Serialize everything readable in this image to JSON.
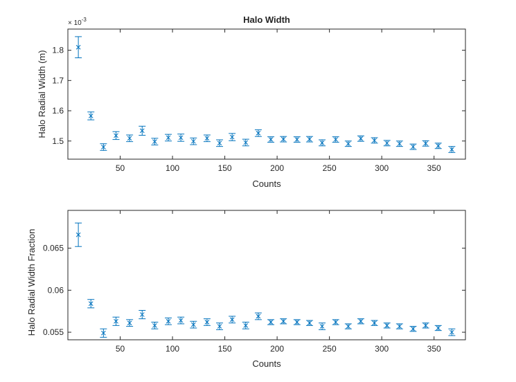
{
  "chart_data": [
    {
      "type": "scatter",
      "title": "Halo Width",
      "xlabel": "Counts",
      "ylabel": "Halo Radial Width (m)",
      "exponent_label": "× 10",
      "exponent_power": "-3",
      "xlim": [
        0,
        380
      ],
      "ylim": [
        1.44,
        1.87
      ],
      "xticks": [
        50,
        100,
        150,
        200,
        250,
        300,
        350
      ],
      "yticks": [
        1.5,
        1.6,
        1.7,
        1.8
      ],
      "ytick_labels": [
        "1.5",
        "1.6",
        "1.7",
        "1.8"
      ],
      "grid": false,
      "color": "#0072BD",
      "series": [
        {
          "x": [
            10,
            22,
            34,
            46,
            59,
            71,
            83,
            96,
            108,
            120,
            133,
            145,
            157,
            170,
            182,
            194,
            206,
            219,
            231,
            243,
            256,
            268,
            280,
            293,
            305,
            317,
            330,
            342,
            354,
            367
          ],
          "y": [
            1.81,
            1.583,
            1.48,
            1.518,
            1.509,
            1.534,
            1.498,
            1.511,
            1.511,
            1.499,
            1.509,
            1.493,
            1.513,
            1.495,
            1.526,
            1.505,
            1.506,
            1.505,
            1.506,
            1.494,
            1.505,
            1.491,
            1.508,
            1.502,
            1.493,
            1.491,
            1.481,
            1.492,
            1.484,
            1.472
          ],
          "err": [
            0.035,
            0.013,
            0.011,
            0.013,
            0.011,
            0.015,
            0.011,
            0.011,
            0.012,
            0.011,
            0.011,
            0.011,
            0.012,
            0.011,
            0.011,
            0.009,
            0.009,
            0.009,
            0.009,
            0.01,
            0.009,
            0.009,
            0.009,
            0.009,
            0.009,
            0.009,
            0.009,
            0.009,
            0.009,
            0.01
          ]
        }
      ]
    },
    {
      "type": "scatter",
      "title": "",
      "xlabel": "Counts",
      "ylabel": "Halo Radial Width Fraction",
      "xlim": [
        0,
        380
      ],
      "ylim": [
        0.0541,
        0.0695
      ],
      "xticks": [
        50,
        100,
        150,
        200,
        250,
        300,
        350
      ],
      "yticks": [
        0.055,
        0.06,
        0.065
      ],
      "ytick_labels": [
        "0.055",
        "0.06",
        "0.065"
      ],
      "grid": false,
      "color": "#0072BD",
      "series": [
        {
          "x": [
            10,
            22,
            34,
            46,
            59,
            71,
            83,
            96,
            108,
            120,
            133,
            145,
            157,
            170,
            182,
            194,
            206,
            219,
            231,
            243,
            256,
            268,
            280,
            293,
            305,
            317,
            330,
            342,
            354,
            367
          ],
          "y": [
            0.0666,
            0.0584,
            0.0549,
            0.0563,
            0.0561,
            0.0571,
            0.0558,
            0.0563,
            0.0564,
            0.0559,
            0.0562,
            0.0557,
            0.0565,
            0.0558,
            0.0569,
            0.0562,
            0.0563,
            0.0562,
            0.0561,
            0.0557,
            0.0562,
            0.0557,
            0.0563,
            0.0561,
            0.0558,
            0.0557,
            0.0554,
            0.0558,
            0.0555,
            0.055
          ],
          "err": [
            0.0014,
            0.0005,
            0.0005,
            0.0005,
            0.0004,
            0.0005,
            0.0004,
            0.0004,
            0.0004,
            0.0004,
            0.0004,
            0.0004,
            0.0004,
            0.0004,
            0.0004,
            0.0003,
            0.0003,
            0.0003,
            0.0003,
            0.0004,
            0.0003,
            0.0003,
            0.0003,
            0.0003,
            0.0003,
            0.0003,
            0.0003,
            0.0003,
            0.0003,
            0.0004
          ]
        }
      ]
    }
  ]
}
